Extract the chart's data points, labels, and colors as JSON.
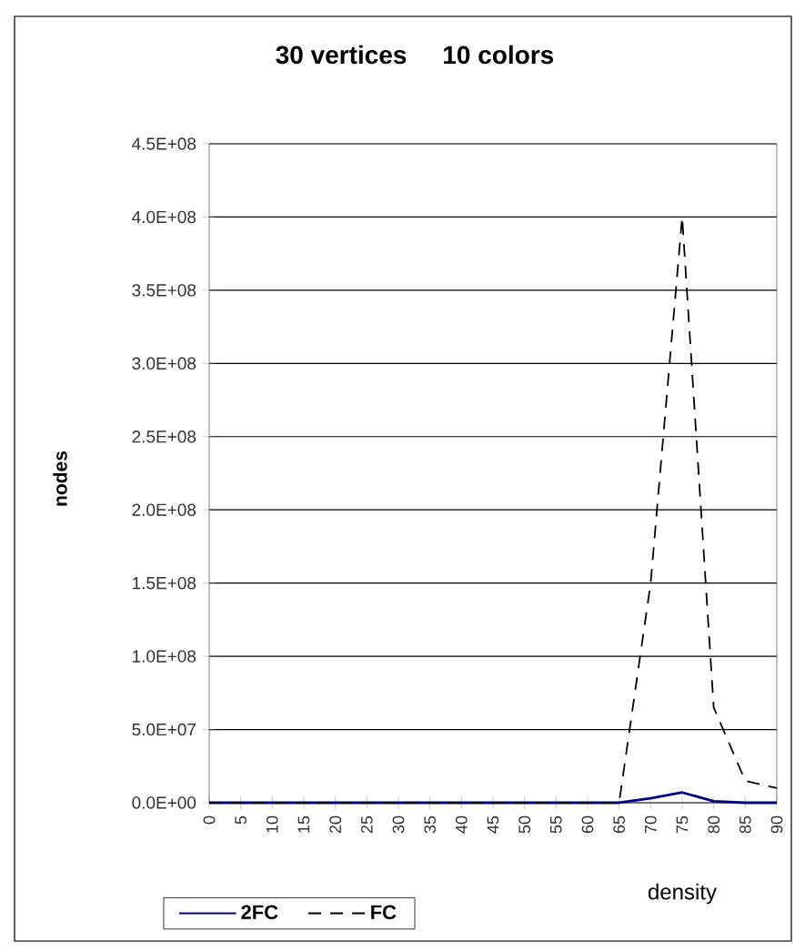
{
  "chart_data": {
    "type": "line",
    "title": "30 vertices     10 colors",
    "xlabel": "density",
    "ylabel": "nodes",
    "categories": [
      "0",
      "5",
      "10",
      "15",
      "20",
      "25",
      "30",
      "35",
      "40",
      "45",
      "50",
      "55",
      "60",
      "65",
      "70",
      "75",
      "80",
      "85",
      "90"
    ],
    "series": [
      {
        "name": "2FC",
        "color": "#000080",
        "line_style": "solid",
        "values": [
          0,
          0,
          0,
          0,
          0,
          0,
          0,
          0,
          0,
          0,
          0,
          0,
          0,
          0,
          3000000,
          7000000,
          1000000,
          0,
          0
        ]
      },
      {
        "name": "FC",
        "color": "#000000",
        "line_style": "dashed",
        "values": [
          0,
          0,
          0,
          0,
          0,
          0,
          0,
          0,
          0,
          0,
          0,
          0,
          0,
          0,
          150000000,
          400000000,
          65000000,
          15000000,
          10000000
        ]
      }
    ],
    "ylim": [
      0,
      450000000
    ],
    "yticks": [
      {
        "value": 0,
        "label": "0.0E+00"
      },
      {
        "value": 50000000,
        "label": "5.0E+07"
      },
      {
        "value": 100000000,
        "label": "1.0E+08"
      },
      {
        "value": 150000000,
        "label": "1.5E+08"
      },
      {
        "value": 200000000,
        "label": "2.0E+08"
      },
      {
        "value": 250000000,
        "label": "2.5E+08"
      },
      {
        "value": 300000000,
        "label": "3.0E+08"
      },
      {
        "value": 350000000,
        "label": "3.5E+08"
      },
      {
        "value": 400000000,
        "label": "4.0E+08"
      },
      {
        "value": 450000000,
        "label": "4.5E+08"
      }
    ],
    "grid": "y",
    "legend": "bottom left",
    "marker": "none"
  }
}
